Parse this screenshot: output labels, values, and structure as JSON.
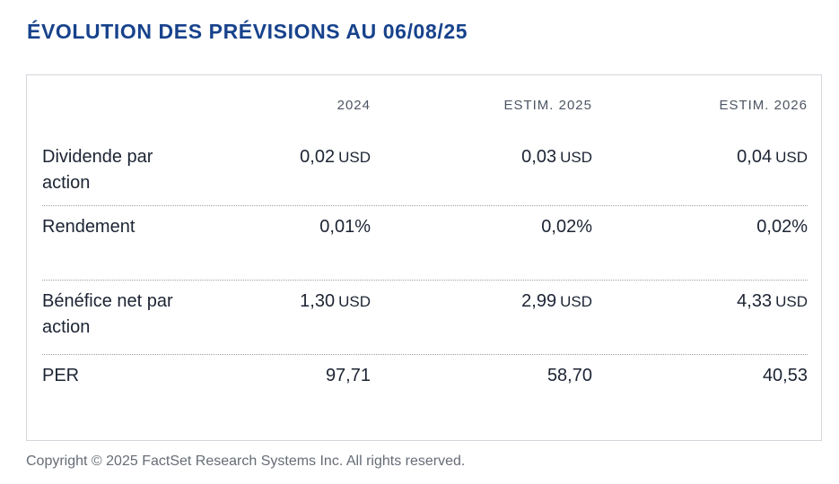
{
  "title": "ÉVOLUTION DES PRÉVISIONS AU 06/08/25",
  "table": {
    "columns": [
      "2024",
      "ESTIM. 2025",
      "ESTIM. 2026"
    ],
    "rows": [
      {
        "label": "Dividende par action",
        "cells": [
          {
            "value": "0,02",
            "unit": "USD"
          },
          {
            "value": "0,03",
            "unit": "USD"
          },
          {
            "value": "0,04",
            "unit": "USD"
          }
        ]
      },
      {
        "label": "Rendement",
        "cells": [
          {
            "value": "0,01%",
            "unit": ""
          },
          {
            "value": "0,02%",
            "unit": ""
          },
          {
            "value": "0,02%",
            "unit": ""
          }
        ]
      },
      {
        "label": "Bénéfice net par action",
        "cells": [
          {
            "value": "1,30",
            "unit": "USD"
          },
          {
            "value": "2,99",
            "unit": "USD"
          },
          {
            "value": "4,33",
            "unit": "USD"
          }
        ]
      },
      {
        "label": "PER",
        "cells": [
          {
            "value": "97,71",
            "unit": ""
          },
          {
            "value": "58,70",
            "unit": ""
          },
          {
            "value": "40,53",
            "unit": ""
          }
        ]
      }
    ]
  },
  "copyright": "Copyright © 2025 FactSet Research Systems Inc. All rights reserved."
}
